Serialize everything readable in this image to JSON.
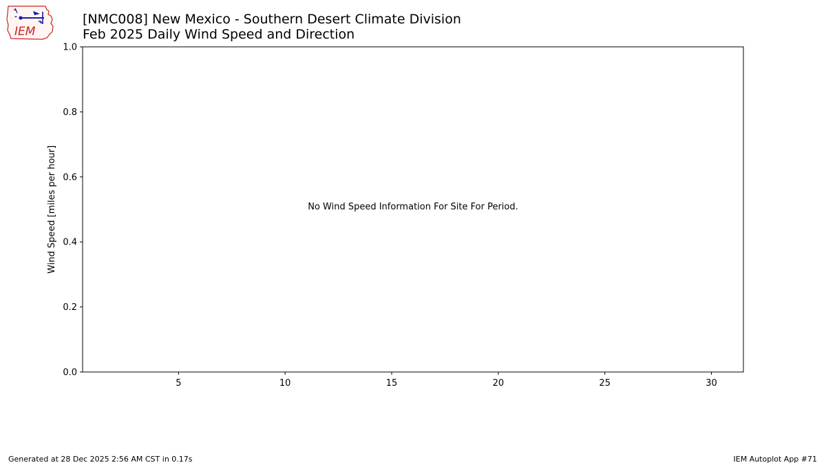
{
  "header": {
    "logo_text": "IEM",
    "title_line1": "[NMC008] New Mexico - Southern Desert Climate Division",
    "title_line2": "Feb 2025 Daily Wind Speed and Direction"
  },
  "chart_data": {
    "type": "bar",
    "title": "",
    "xlabel": "",
    "ylabel": "Wind Speed [miles per hour]",
    "xlim": [
      0.5,
      31.5
    ],
    "ylim": [
      0,
      1.0
    ],
    "x_ticks": [
      5,
      10,
      15,
      20,
      25,
      30
    ],
    "y_ticks": [
      "0.0",
      "0.2",
      "0.4",
      "0.6",
      "0.8",
      "1.0"
    ],
    "series": [],
    "annotation": "No Wind Speed Information For Site For Period.",
    "grid": false,
    "legend": "none"
  },
  "footer": {
    "generated": "Generated at 28 Dec 2025 2:56 AM CST in 0.17s",
    "app": "IEM Autoplot App #71"
  },
  "colors": {
    "axis": "#000000",
    "logo_outline": "#cc2222",
    "logo_icon": "#1a1aa8"
  }
}
